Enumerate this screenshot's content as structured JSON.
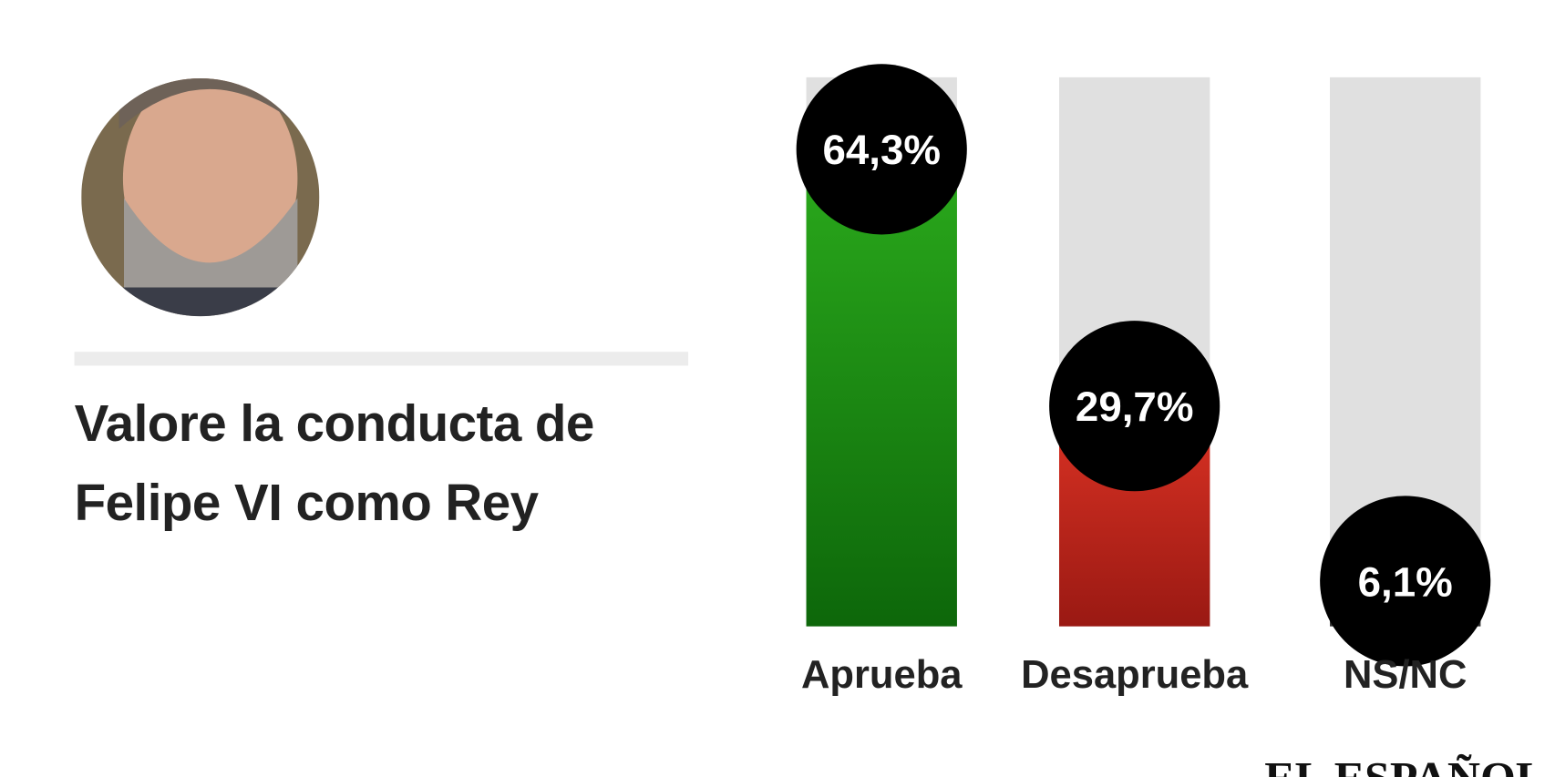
{
  "chart_data": {
    "type": "bar",
    "title": "Valore la conducta de Felipe VI como Rey",
    "categories": [
      "Aprueba",
      "Desaprueba",
      "NS/NC"
    ],
    "values": [
      64.3,
      29.7,
      6.1
    ],
    "value_labels": [
      "64,3%",
      "29,7%",
      "6,1%"
    ],
    "colors": [
      [
        "#2bab1c",
        "#0d670a"
      ],
      [
        "#dc3324",
        "#9a1913"
      ],
      [
        "#5a5a5a",
        "#333333"
      ]
    ],
    "ylim": [
      0,
      74
    ],
    "source": "EL ESPAÑOL"
  }
}
